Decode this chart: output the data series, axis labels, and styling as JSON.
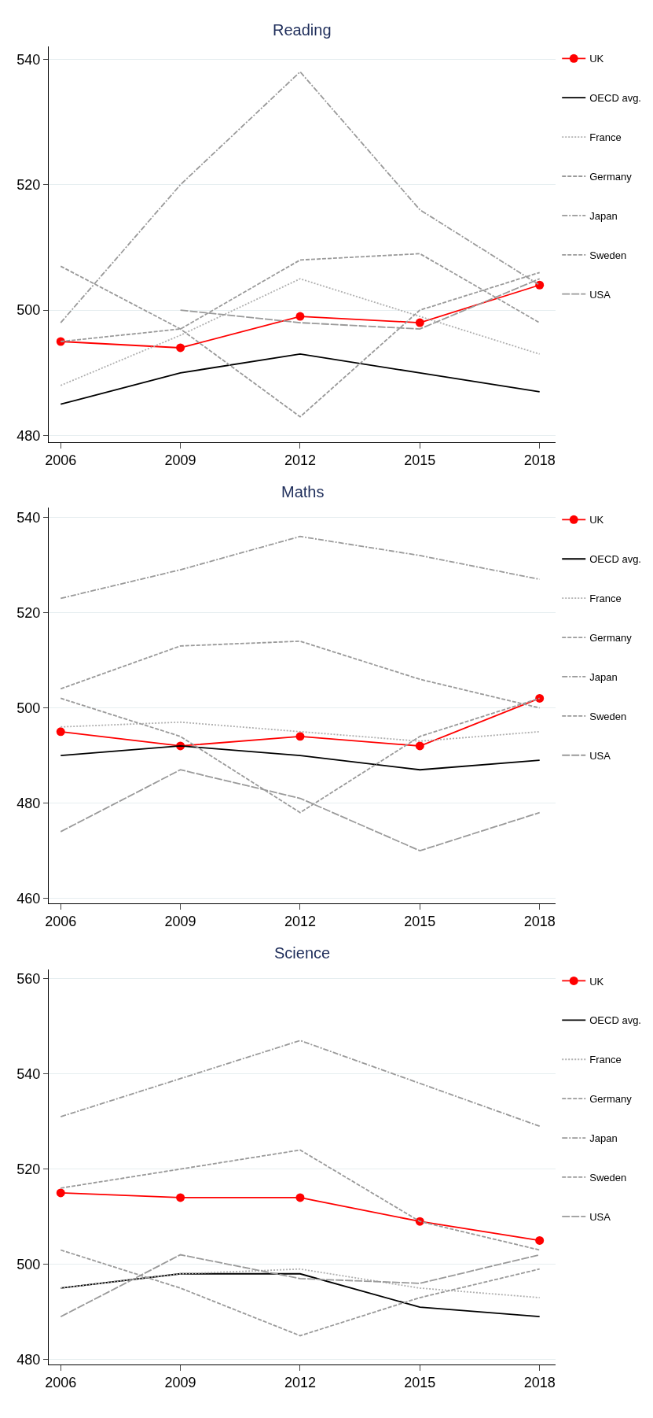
{
  "chart_data": [
    {
      "type": "line",
      "title": "Reading",
      "x": [
        2006,
        2009,
        2012,
        2015,
        2018
      ],
      "xlim": [
        2005.7,
        2018.4
      ],
      "xticks": [
        2006,
        2009,
        2012,
        2015,
        2018
      ],
      "ylim": [
        479,
        542
      ],
      "yticks": [
        480,
        500,
        520,
        540
      ],
      "grid": "y",
      "legend": "right",
      "series": [
        {
          "name": "UK",
          "color": "#ff0000",
          "values": [
            495,
            494,
            499,
            498,
            504
          ],
          "marker": "circle",
          "line_style": "solid"
        },
        {
          "name": "OECD avg.",
          "color": "#000000",
          "values": [
            485,
            490,
            493,
            490,
            487
          ],
          "marker": "none",
          "line_style": "solid"
        },
        {
          "name": "France",
          "color": "#b0b0b0",
          "values": [
            488,
            496,
            505,
            499,
            493
          ],
          "marker": "none",
          "line_style": "dotted"
        },
        {
          "name": "Germany",
          "color": "#9a9a9a",
          "values": [
            495,
            497,
            508,
            509,
            498
          ],
          "marker": "none",
          "line_style": "dashed"
        },
        {
          "name": "Japan",
          "color": "#9a9a9a",
          "values": [
            498,
            520,
            538,
            516,
            504
          ],
          "marker": "none",
          "line_style": "dashdot"
        },
        {
          "name": "Sweden",
          "color": "#9a9a9a",
          "values": [
            507,
            497,
            483,
            500,
            506
          ],
          "marker": "none",
          "line_style": "dashed"
        },
        {
          "name": "USA",
          "color": "#9a9a9a",
          "values": [
            null,
            500,
            498,
            497,
            505
          ],
          "marker": "none",
          "line_style": "longdash"
        }
      ]
    },
    {
      "type": "line",
      "title": "Maths",
      "x": [
        2006,
        2009,
        2012,
        2015,
        2018
      ],
      "xlim": [
        2005.7,
        2018.4
      ],
      "xticks": [
        2006,
        2009,
        2012,
        2015,
        2018
      ],
      "ylim": [
        459,
        542
      ],
      "yticks": [
        460,
        480,
        500,
        520,
        540
      ],
      "grid": "y",
      "legend": "right",
      "series": [
        {
          "name": "UK",
          "color": "#ff0000",
          "values": [
            495,
            492,
            494,
            492,
            502
          ],
          "marker": "circle",
          "line_style": "solid"
        },
        {
          "name": "OECD avg.",
          "color": "#000000",
          "values": [
            490,
            492,
            490,
            487,
            489
          ],
          "marker": "none",
          "line_style": "solid"
        },
        {
          "name": "France",
          "color": "#b0b0b0",
          "values": [
            496,
            497,
            495,
            493,
            495
          ],
          "marker": "none",
          "line_style": "dotted"
        },
        {
          "name": "Germany",
          "color": "#9a9a9a",
          "values": [
            504,
            513,
            514,
            506,
            500
          ],
          "marker": "none",
          "line_style": "dashed"
        },
        {
          "name": "Japan",
          "color": "#9a9a9a",
          "values": [
            523,
            529,
            536,
            532,
            527
          ],
          "marker": "none",
          "line_style": "dashdot"
        },
        {
          "name": "Sweden",
          "color": "#9a9a9a",
          "values": [
            502,
            494,
            478,
            494,
            502
          ],
          "marker": "none",
          "line_style": "dashed"
        },
        {
          "name": "USA",
          "color": "#9a9a9a",
          "values": [
            474,
            487,
            481,
            470,
            478
          ],
          "marker": "none",
          "line_style": "longdash"
        }
      ]
    },
    {
      "type": "line",
      "title": "Science",
      "x": [
        2006,
        2009,
        2012,
        2015,
        2018
      ],
      "xlim": [
        2005.7,
        2018.4
      ],
      "xticks": [
        2006,
        2009,
        2012,
        2015,
        2018
      ],
      "ylim": [
        479,
        562
      ],
      "yticks": [
        480,
        500,
        520,
        540,
        560
      ],
      "grid": "y",
      "legend": "right",
      "series": [
        {
          "name": "UK",
          "color": "#ff0000",
          "values": [
            515,
            514,
            514,
            509,
            505
          ],
          "marker": "circle",
          "line_style": "solid"
        },
        {
          "name": "OECD avg.",
          "color": "#000000",
          "values": [
            495,
            498,
            498,
            491,
            489
          ],
          "marker": "none",
          "line_style": "solid"
        },
        {
          "name": "France",
          "color": "#b0b0b0",
          "values": [
            495,
            498,
            499,
            495,
            493
          ],
          "marker": "none",
          "line_style": "dotted"
        },
        {
          "name": "Germany",
          "color": "#9a9a9a",
          "values": [
            516,
            520,
            524,
            509,
            503
          ],
          "marker": "none",
          "line_style": "dashed"
        },
        {
          "name": "Japan",
          "color": "#9a9a9a",
          "values": [
            531,
            539,
            547,
            538,
            529
          ],
          "marker": "none",
          "line_style": "dashdot"
        },
        {
          "name": "Sweden",
          "color": "#9a9a9a",
          "values": [
            503,
            495,
            485,
            493,
            499
          ],
          "marker": "none",
          "line_style": "dashed"
        },
        {
          "name": "USA",
          "color": "#9a9a9a",
          "values": [
            489,
            502,
            497,
            496,
            502
          ],
          "marker": "none",
          "line_style": "longdash"
        }
      ]
    }
  ]
}
